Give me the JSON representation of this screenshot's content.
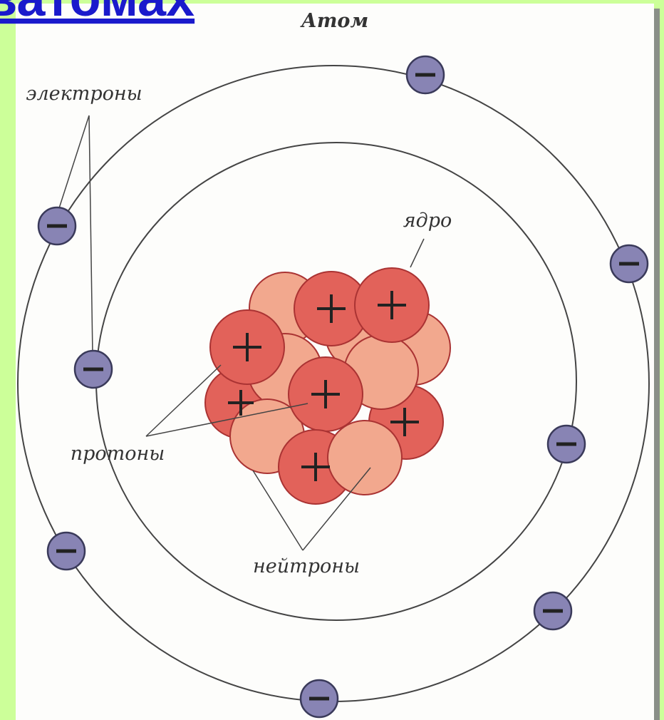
{
  "heading": "ватомах",
  "diagram": {
    "title": "Атом",
    "labels": {
      "electrons": "электроны",
      "nucleus": "ядро",
      "protons": "протоны",
      "neutrons": "нейтроны"
    }
  }
}
